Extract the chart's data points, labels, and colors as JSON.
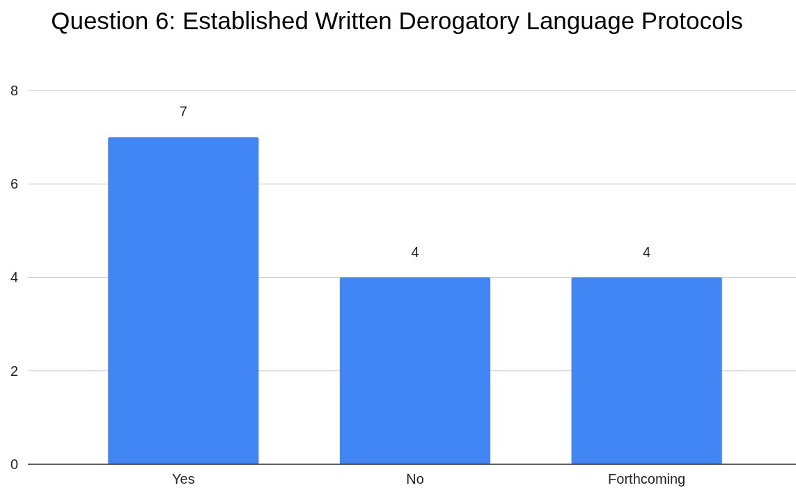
{
  "chart_data": {
    "type": "bar",
    "title": "Question 6: Established Written Derogatory Language Protocols",
    "categories": [
      "Yes",
      "No",
      "Forthcoming"
    ],
    "values": [
      7,
      4,
      4
    ],
    "color": "#4285f4",
    "ylim": [
      0,
      8
    ],
    "yticks": [
      0,
      2,
      4,
      6,
      8
    ],
    "grid": "y",
    "data_labels": true
  }
}
